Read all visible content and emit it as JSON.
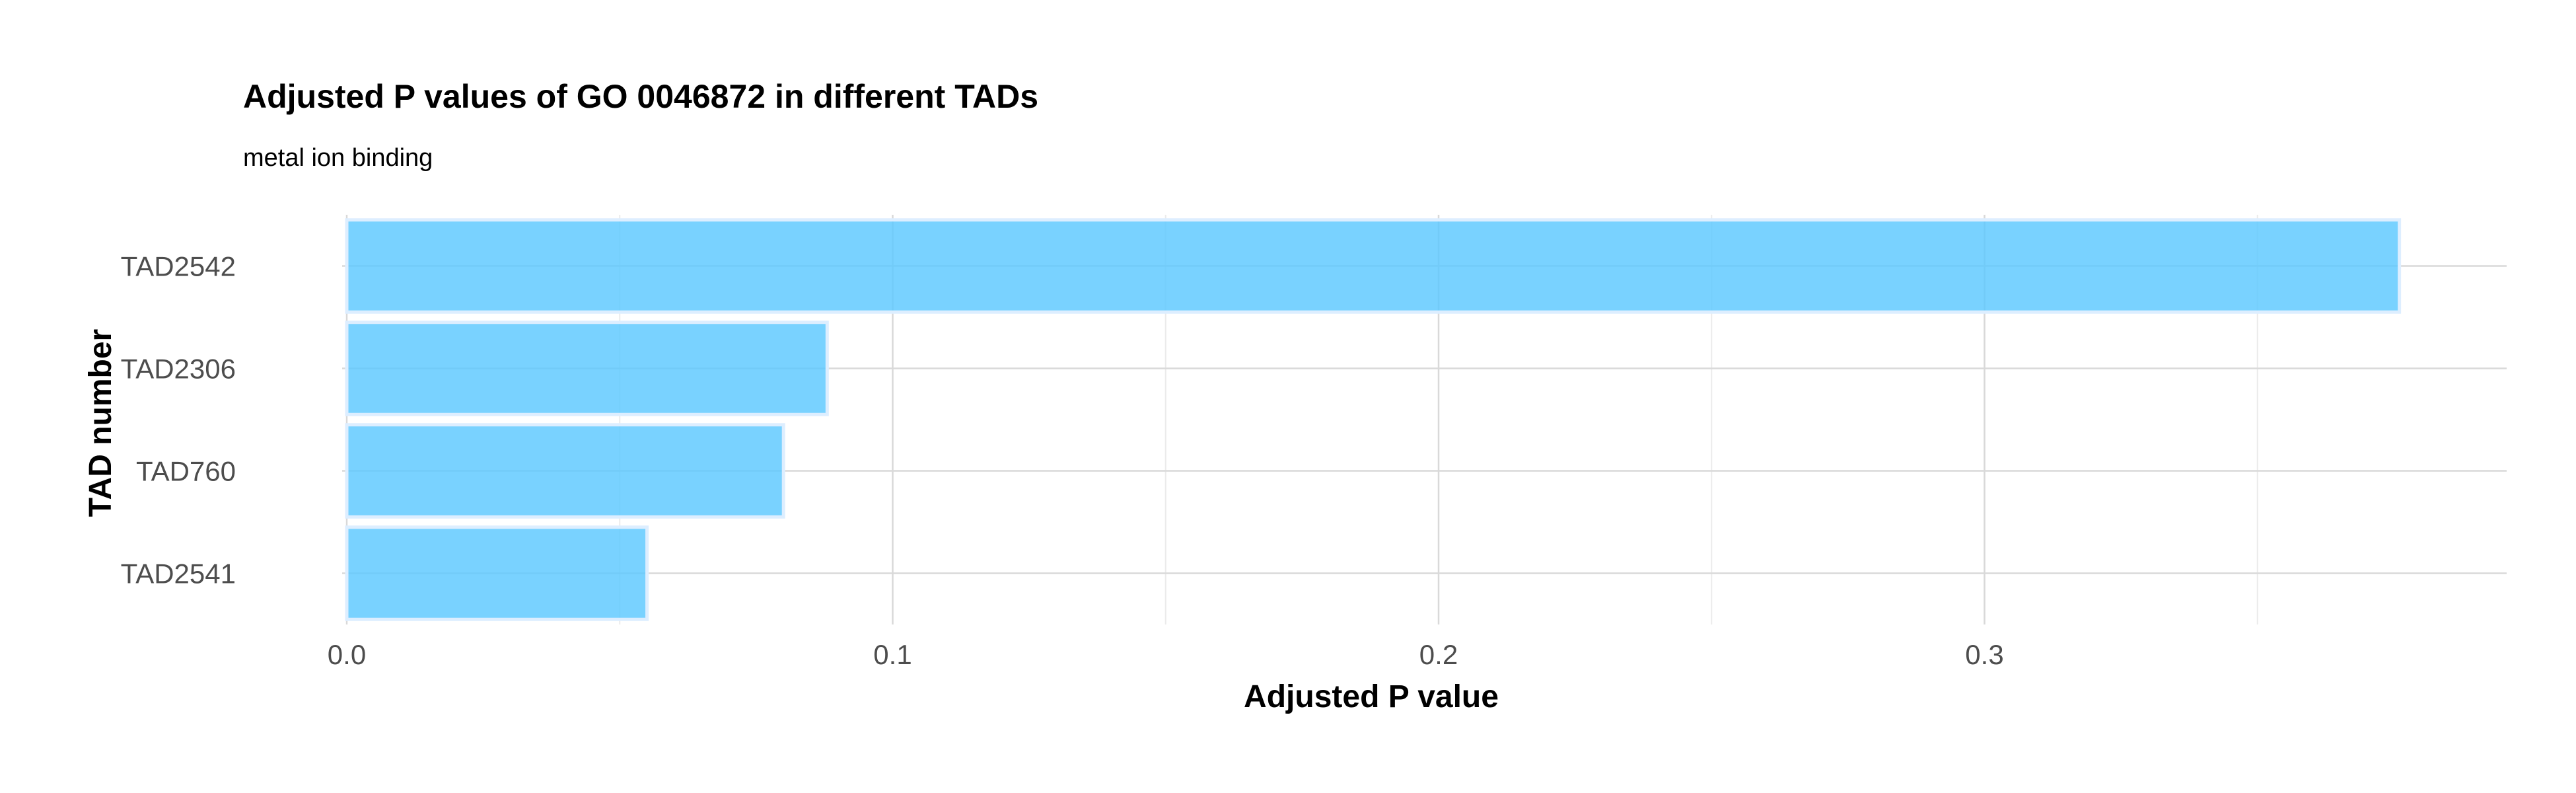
{
  "chart_data": {
    "type": "bar",
    "orientation": "horizontal",
    "title": "Adjusted P values of GO 0046872 in different TADs",
    "subtitle": "metal ion binding",
    "xlabel": "Adjusted P value",
    "ylabel": "TAD number",
    "categories": [
      "TAD2542",
      "TAD2306",
      "TAD760",
      "TAD2541"
    ],
    "values": [
      0.376,
      0.088,
      0.08,
      0.055
    ],
    "xlim": [
      0,
      0.395
    ],
    "xticks": [
      0.0,
      0.1,
      0.2,
      0.3
    ],
    "xtick_labels": [
      "0.0",
      "0.1",
      "0.2",
      "0.3"
    ],
    "bar_color": "#5bc8ff",
    "grid": true,
    "legend": "none"
  }
}
